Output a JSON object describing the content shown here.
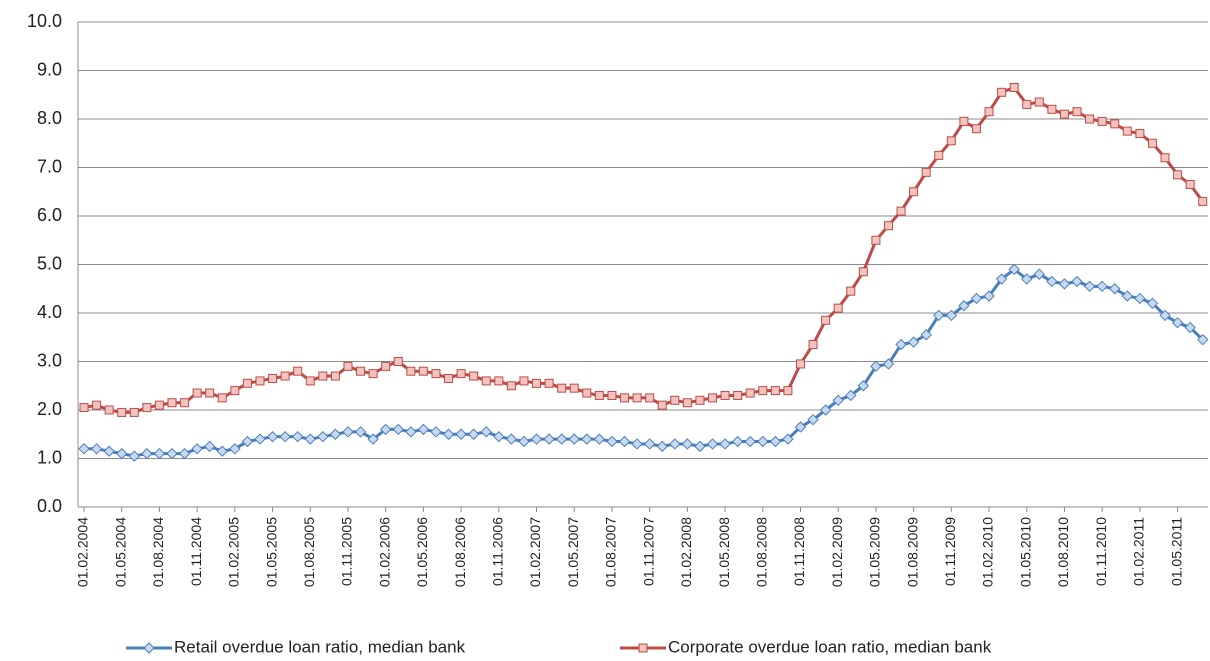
{
  "chart_data": {
    "type": "line",
    "categories": [
      "01.02.2004",
      null,
      null,
      "01.05.2004",
      null,
      null,
      "01.08.2004",
      null,
      null,
      "01.11.2004",
      null,
      null,
      "01.02.2005",
      null,
      null,
      "01.05.2005",
      null,
      null,
      "01.08.2005",
      null,
      null,
      "01.11.2005",
      null,
      null,
      "01.02.2006",
      null,
      null,
      "01.05.2006",
      null,
      null,
      "01.08.2006",
      null,
      null,
      "01.11.2006",
      null,
      null,
      "01.02.2007",
      null,
      null,
      "01.05.2007",
      null,
      null,
      "01.08.2007",
      null,
      null,
      "01.11.2007",
      null,
      null,
      "01.02.2008",
      null,
      null,
      "01.05.2008",
      null,
      null,
      "01.08.2008",
      null,
      null,
      "01.11.2008",
      null,
      null,
      "01.02.2009",
      null,
      null,
      "01.05.2009",
      null,
      null,
      "01.08.2009",
      null,
      null,
      "01.11.2009",
      null,
      null,
      "01.02.2010",
      null,
      null,
      "01.05.2010",
      null,
      null,
      "01.08.2010",
      null,
      null,
      "01.11.2010",
      null,
      null,
      "01.02.2011",
      null,
      null,
      "01.05.2011",
      null,
      null
    ],
    "series": [
      {
        "name": "Retail overdue loan ratio, median bank",
        "color": "#4a7ebb",
        "marker": "diamond",
        "marker_fill": "#c6d9f1",
        "values": [
          1.2,
          1.2,
          1.15,
          1.1,
          1.05,
          1.1,
          1.1,
          1.1,
          1.1,
          1.2,
          1.25,
          1.15,
          1.2,
          1.35,
          1.4,
          1.45,
          1.45,
          1.45,
          1.4,
          1.45,
          1.5,
          1.55,
          1.55,
          1.4,
          1.6,
          1.6,
          1.55,
          1.6,
          1.55,
          1.5,
          1.5,
          1.5,
          1.55,
          1.45,
          1.4,
          1.35,
          1.4,
          1.4,
          1.4,
          1.4,
          1.4,
          1.4,
          1.35,
          1.35,
          1.3,
          1.3,
          1.25,
          1.3,
          1.3,
          1.25,
          1.3,
          1.3,
          1.35,
          1.35,
          1.35,
          1.35,
          1.4,
          1.65,
          1.8,
          2.0,
          2.2,
          2.3,
          2.5,
          2.9,
          2.95,
          3.35,
          3.4,
          3.55,
          3.95,
          3.95,
          4.15,
          4.3,
          4.35,
          4.7,
          4.9,
          4.7,
          4.8,
          4.65,
          4.6,
          4.65,
          4.55,
          4.55,
          4.5,
          4.35,
          4.3,
          4.2,
          3.95,
          3.8,
          3.7,
          3.45
        ]
      },
      {
        "name": "Corporate overdue loan ratio, median bank",
        "color": "#be4b48",
        "marker": "square",
        "marker_fill": "#f2c4c0",
        "values": [
          2.05,
          2.1,
          2.0,
          1.95,
          1.95,
          2.05,
          2.1,
          2.15,
          2.15,
          2.35,
          2.35,
          2.25,
          2.4,
          2.55,
          2.6,
          2.65,
          2.7,
          2.8,
          2.6,
          2.7,
          2.7,
          2.9,
          2.8,
          2.75,
          2.9,
          3.0,
          2.8,
          2.8,
          2.75,
          2.65,
          2.75,
          2.7,
          2.6,
          2.6,
          2.5,
          2.6,
          2.55,
          2.55,
          2.45,
          2.45,
          2.35,
          2.3,
          2.3,
          2.25,
          2.25,
          2.25,
          2.1,
          2.2,
          2.15,
          2.2,
          2.25,
          2.3,
          2.3,
          2.35,
          2.4,
          2.4,
          2.4,
          2.95,
          3.35,
          3.85,
          4.1,
          4.45,
          4.85,
          5.5,
          5.8,
          6.1,
          6.5,
          6.9,
          7.25,
          7.55,
          7.95,
          7.8,
          8.15,
          8.55,
          8.65,
          8.3,
          8.35,
          8.2,
          8.1,
          8.15,
          8.0,
          7.95,
          7.9,
          7.75,
          7.7,
          7.5,
          7.2,
          6.85,
          6.65,
          6.3
        ]
      }
    ],
    "ylim": [
      0,
      10
    ],
    "yticks": [
      {
        "value": 0,
        "label": "0.0"
      },
      {
        "value": 1,
        "label": "1.0"
      },
      {
        "value": 2,
        "label": "2.0"
      },
      {
        "value": 3,
        "label": "3.0"
      },
      {
        "value": 4,
        "label": "4.0"
      },
      {
        "value": 5,
        "label": "5.0"
      },
      {
        "value": 6,
        "label": "6.0"
      },
      {
        "value": 7,
        "label": "7.0"
      },
      {
        "value": 8,
        "label": "8.0"
      },
      {
        "value": 9,
        "label": "9.0"
      },
      {
        "value": 10,
        "label": "10.0"
      }
    ],
    "grid": true,
    "legend": "bottom"
  }
}
